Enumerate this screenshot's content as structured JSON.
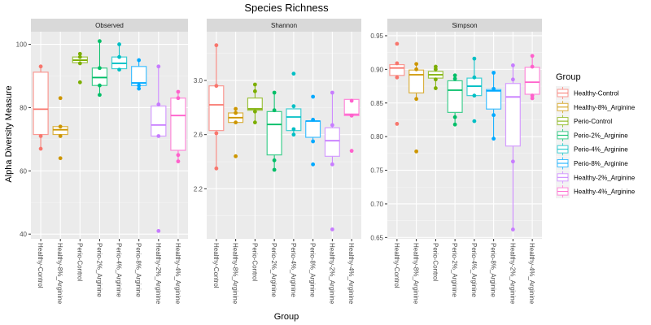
{
  "chart_data": {
    "type": "box",
    "title": "Species Richness",
    "xlabel": "Group",
    "ylabel": "Alpha Diversity Measure",
    "legend": {
      "title": "Group",
      "placement": "right",
      "entries": [
        {
          "label": "Healthy-Control",
          "color": "#F8766D"
        },
        {
          "label": "Healthy-8%_Arginine",
          "color": "#CD9600"
        },
        {
          "label": "Perio-Control",
          "color": "#7CAE00"
        },
        {
          "label": "Perio-2%_Arginine",
          "color": "#00BE67"
        },
        {
          "label": "Perio-4%_Arginine",
          "color": "#00BFC4"
        },
        {
          "label": "Perio-8%_Arginine",
          "color": "#00A9FF"
        },
        {
          "label": "Healthy-2%_Arginine",
          "color": "#C77CFF"
        },
        {
          "label": "Healthy-4%_Arginine",
          "color": "#FF61CC"
        }
      ]
    },
    "categories": [
      "Healthy-Control",
      "Healthy-8%_Arginine",
      "Perio-Control",
      "Perio-2%_Arginine",
      "Perio-4%_Arginine",
      "Perio-8%_Arginine",
      "Healthy-2%_Arginine",
      "Healthy-4%_Arginine"
    ],
    "panels": [
      {
        "name": "Observed",
        "ylim": [
          38.5,
          104
        ],
        "yticks": [
          40,
          60,
          80,
          100
        ],
        "ytick_labels": [
          "40",
          "60",
          "80",
          "100"
        ],
        "boxes": [
          {
            "q1": 71.5,
            "median": 79.5,
            "q3": 91.2,
            "whisker_low": 67,
            "whisker_high": 93,
            "points": [
              93,
              71,
              67
            ]
          },
          {
            "q1": 71.5,
            "median": 73,
            "q3": 74,
            "whisker_low": 71,
            "whisker_high": 74,
            "points": [
              83,
              74,
              71,
              64
            ]
          },
          {
            "q1": 94.2,
            "median": 95,
            "q3": 96,
            "whisker_low": 94,
            "whisker_high": 97,
            "points": [
              97,
              96,
              94,
              88
            ]
          },
          {
            "q1": 87,
            "median": 89.5,
            "q3": 92.5,
            "whisker_low": 84,
            "whisker_high": 101,
            "points": [
              101,
              92.5,
              87,
              84
            ]
          },
          {
            "q1": 92.3,
            "median": 94,
            "q3": 96,
            "whisker_low": 92,
            "whisker_high": 100,
            "points": [
              100,
              96,
              92
            ]
          },
          {
            "q1": 87,
            "median": 87.8,
            "q3": 93,
            "whisker_low": 86,
            "whisker_high": 95,
            "points": [
              95,
              87,
              86
            ]
          },
          {
            "q1": 71,
            "median": 74.5,
            "q3": 80.5,
            "whisker_low": 71,
            "whisker_high": 93,
            "points": [
              93,
              81,
              71,
              41
            ]
          },
          {
            "q1": 66.5,
            "median": 77.5,
            "q3": 83,
            "whisker_low": 63,
            "whisker_high": 85,
            "points": [
              85,
              83,
              65,
              63
            ]
          }
        ]
      },
      {
        "name": "Shannon",
        "ylim": [
          1.83,
          3.36
        ],
        "yticks": [
          2.2,
          2.6,
          3.0
        ],
        "ytick_labels": [
          "2.2",
          "2.6",
          "3.0"
        ],
        "boxes": [
          {
            "q1": 2.63,
            "median": 2.82,
            "q3": 2.96,
            "whisker_low": 2.35,
            "whisker_high": 3.26,
            "points": [
              3.26,
              2.96,
              2.61,
              2.35
            ]
          },
          {
            "q1": 2.69,
            "median": 2.725,
            "q3": 2.76,
            "whisker_low": 2.68,
            "whisker_high": 2.79,
            "points": [
              2.79,
              2.76,
              2.69,
              2.44
            ]
          },
          {
            "q1": 2.78,
            "median": 2.79,
            "q3": 2.87,
            "whisker_low": 2.69,
            "whisker_high": 2.97,
            "points": [
              2.97,
              2.92,
              2.77,
              2.69
            ]
          },
          {
            "q1": 2.45,
            "median": 2.675,
            "q3": 2.77,
            "whisker_low": 2.34,
            "whisker_high": 2.91,
            "points": [
              2.91,
              2.78,
              2.41,
              2.34
            ]
          },
          {
            "q1": 2.63,
            "median": 2.73,
            "q3": 2.79,
            "whisker_low": 2.6,
            "whisker_high": 2.81,
            "points": [
              3.05,
              2.81,
              2.64,
              2.6
            ]
          },
          {
            "q1": 2.58,
            "median": 2.7,
            "q3": 2.7,
            "whisker_low": 2.55,
            "whisker_high": 2.71,
            "points": [
              2.88,
              2.71,
              2.55,
              2.38
            ]
          },
          {
            "q1": 2.44,
            "median": 2.555,
            "q3": 2.65,
            "whisker_low": 2.38,
            "whisker_high": 2.91,
            "points": [
              2.91,
              2.67,
              2.38,
              1.9
            ]
          },
          {
            "q1": 2.74,
            "median": 2.75,
            "q3": 2.86,
            "whisker_low": 2.74,
            "whisker_high": 2.85,
            "points": [
              2.85,
              2.74,
              2.48
            ]
          }
        ]
      },
      {
        "name": "Simpson",
        "ylim": [
          0.648,
          0.956
        ],
        "yticks": [
          0.65,
          0.7,
          0.75,
          0.8,
          0.85,
          0.9,
          0.95
        ],
        "ytick_labels": [
          "0.65",
          "0.70",
          "0.75",
          "0.80",
          "0.85",
          "0.90",
          "0.95"
        ],
        "boxes": [
          {
            "q1": 0.891,
            "median": 0.902,
            "q3": 0.907,
            "whisker_low": 0.888,
            "whisker_high": 0.909,
            "points": [
              0.938,
              0.909,
              0.888,
              0.819
            ]
          },
          {
            "q1": 0.865,
            "median": 0.892,
            "q3": 0.899,
            "whisker_low": 0.856,
            "whisker_high": 0.908,
            "points": [
              0.908,
              0.9,
              0.856,
              0.778
            ]
          },
          {
            "q1": 0.887,
            "median": 0.892,
            "q3": 0.897,
            "whisker_low": 0.872,
            "whisker_high": 0.904,
            "points": [
              0.904,
              0.9,
              0.885,
              0.872
            ]
          },
          {
            "q1": 0.836,
            "median": 0.869,
            "q3": 0.883,
            "whisker_low": 0.818,
            "whisker_high": 0.891,
            "points": [
              0.891,
              0.886,
              0.829,
              0.818
            ]
          },
          {
            "q1": 0.861,
            "median": 0.875,
            "q3": 0.887,
            "whisker_low": 0.861,
            "whisker_high": 0.916,
            "points": [
              0.916,
              0.888,
              0.861,
              0.823
            ]
          },
          {
            "q1": 0.841,
            "median": 0.868,
            "q3": 0.87,
            "whisker_low": 0.797,
            "whisker_high": 0.895,
            "points": [
              0.895,
              0.871,
              0.832,
              0.797
            ]
          },
          {
            "q1": 0.786,
            "median": 0.859,
            "q3": 0.879,
            "whisker_low": 0.662,
            "whisker_high": 0.906,
            "points": [
              0.906,
              0.885,
              0.763,
              0.662
            ]
          },
          {
            "q1": 0.863,
            "median": 0.881,
            "q3": 0.903,
            "whisker_low": 0.857,
            "whisker_high": 0.92,
            "points": [
              0.92,
              0.904,
              0.861,
              0.857
            ]
          }
        ]
      }
    ]
  }
}
